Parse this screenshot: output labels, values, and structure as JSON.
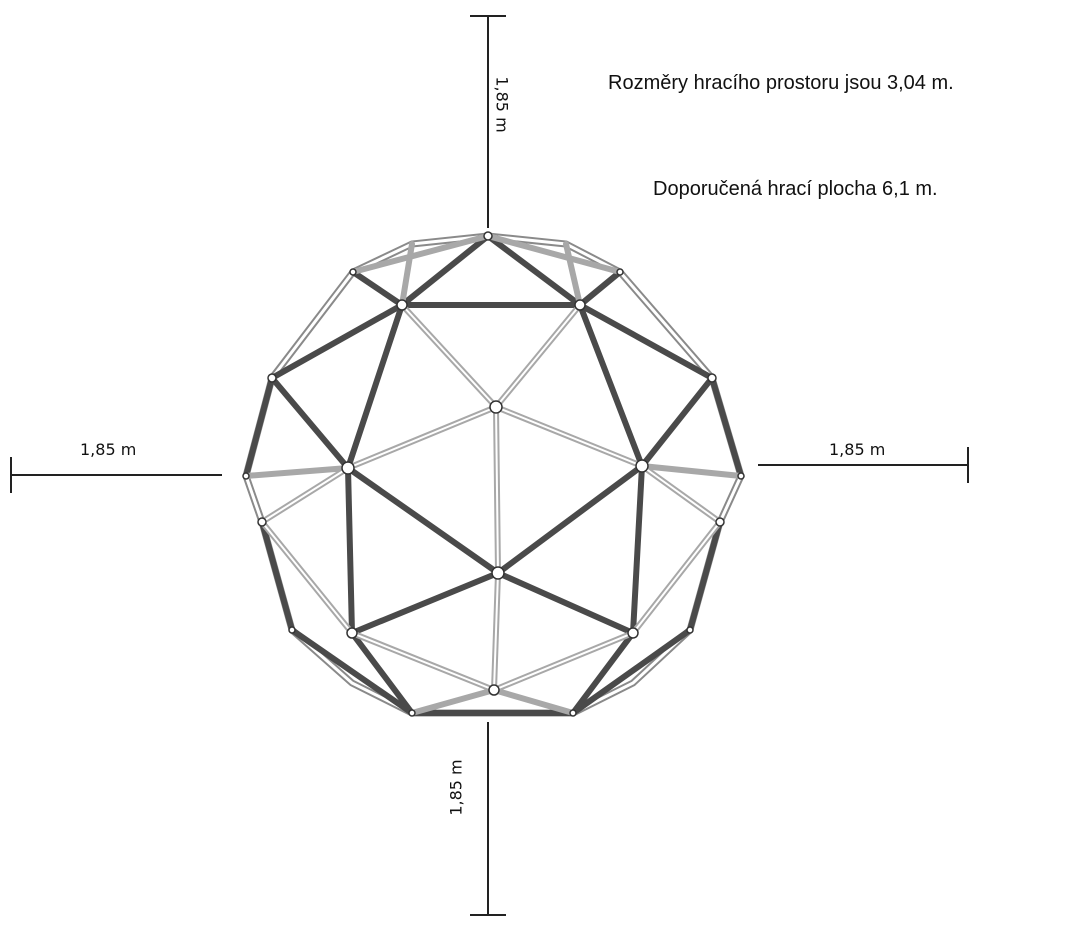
{
  "notes": {
    "play_area": "Rozměry hracího prostoru jsou 3,04 m.",
    "recommended_area": "Doporučená hrací plocha 6,1 m."
  },
  "dimensions": {
    "top": "1,85 m",
    "left": "1,85 m",
    "right": "1,85 m",
    "bottom": "1,85 m"
  },
  "colors": {
    "dark_strut": "#4a4a4a",
    "light_strut": "#9c9c9c",
    "line": "#222222"
  }
}
